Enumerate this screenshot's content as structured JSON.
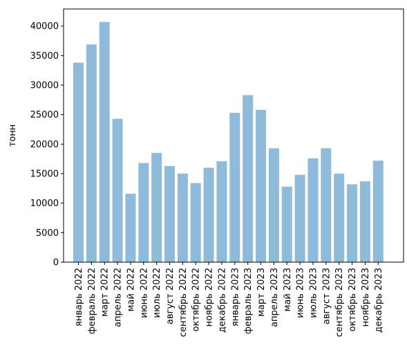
{
  "chart_data": {
    "type": "bar",
    "categories": [
      "январь 2022",
      "февраль 2022",
      "март 2022",
      "апрель 2022",
      "май 2022",
      "июнь 2022",
      "июль 2022",
      "август 2022",
      "сентябрь 2022",
      "октябрь 2022",
      "ноябрь 2022",
      "декабрь 2022",
      "январь 2023",
      "февраль 2023",
      "март 2023",
      "апрель 2023",
      "май 2023",
      "июнь 2023",
      "июль 2023",
      "август 2023",
      "сентябрь 2023",
      "октябрь 2023",
      "ноябрь 2023",
      "декабрь 2023"
    ],
    "values": [
      33800,
      36900,
      40700,
      24300,
      11600,
      16800,
      18500,
      16300,
      15000,
      13400,
      16000,
      17100,
      25300,
      28300,
      25800,
      19300,
      12800,
      14800,
      17600,
      19300,
      15000,
      13200,
      13700,
      17200
    ],
    "title": "",
    "xlabel": "",
    "ylabel": "тонн",
    "ylim": [
      0,
      42900
    ],
    "yticks": [
      0,
      5000,
      10000,
      15000,
      20000,
      25000,
      30000,
      35000,
      40000
    ],
    "grid": false,
    "bar_color": "#8fbad9"
  }
}
